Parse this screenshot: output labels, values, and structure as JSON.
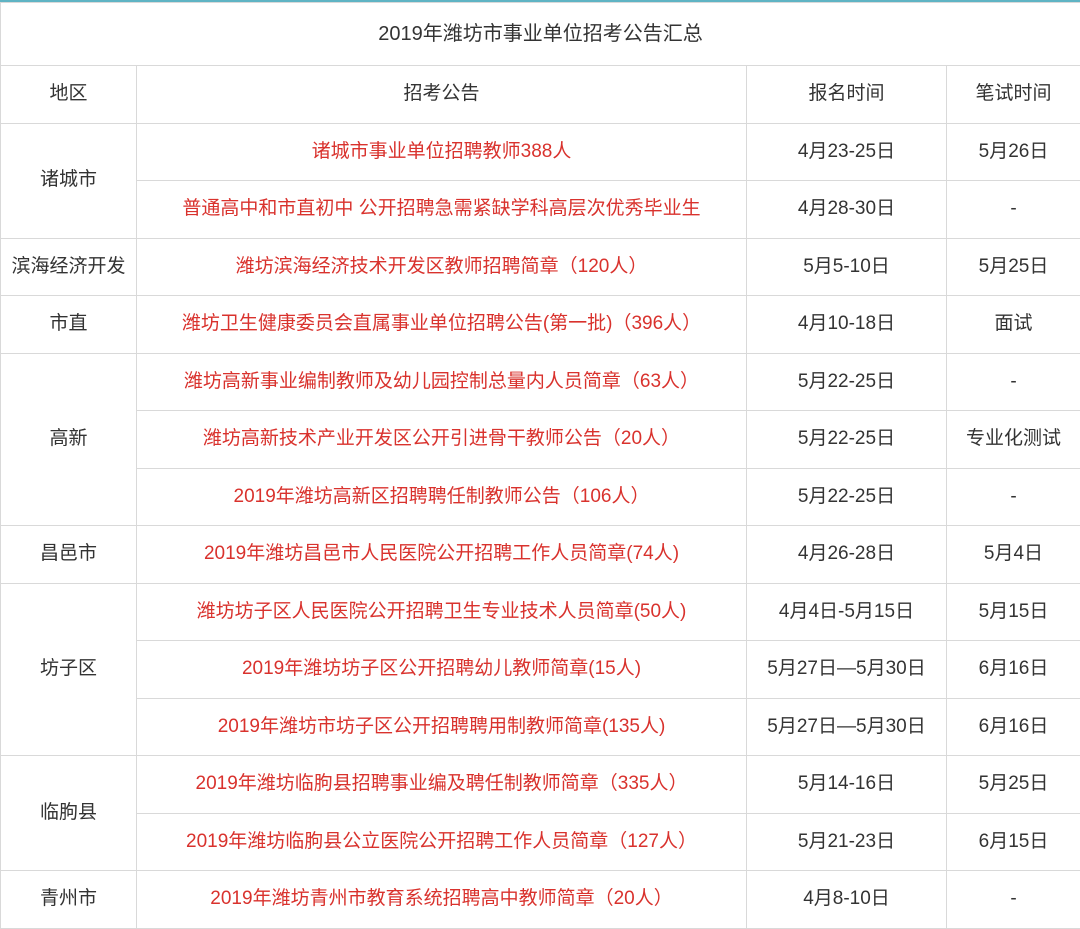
{
  "title": "2019年潍坊市事业单位招考公告汇总",
  "headers": {
    "region": "地区",
    "notice": "招考公告",
    "reg_time": "报名时间",
    "exam_time": "笔试时间"
  },
  "colors": {
    "link": "#d9322d",
    "border": "#d9d9d9",
    "top_border": "#5fb4c4",
    "text": "#333333",
    "background": "#ffffff"
  },
  "groups": [
    {
      "region": "诸城市",
      "rows": [
        {
          "notice": "诸城市事业单位招聘教师388人",
          "reg": "4月23-25日",
          "exam": "5月26日"
        },
        {
          "notice": "普通高中和市直初中 公开招聘急需紧缺学科高层次优秀毕业生",
          "reg": "4月28-30日",
          "exam": "-"
        }
      ]
    },
    {
      "region": "滨海经济开发",
      "rows": [
        {
          "notice": "潍坊滨海经济技术开发区教师招聘简章（120人）",
          "reg": "5月5-10日",
          "exam": "5月25日"
        }
      ]
    },
    {
      "region": "市直",
      "rows": [
        {
          "notice": "潍坊卫生健康委员会直属事业单位招聘公告(第一批)（396人）",
          "reg": "4月10-18日",
          "exam": "面试"
        }
      ]
    },
    {
      "region": "高新",
      "rows": [
        {
          "notice": "潍坊高新事业编制教师及幼儿园控制总量内人员简章（63人）",
          "reg": "5月22-25日",
          "exam": "-"
        },
        {
          "notice": "潍坊高新技术产业开发区公开引进骨干教师公告（20人）",
          "reg": "5月22-25日",
          "exam": "专业化测试"
        },
        {
          "notice": "2019年潍坊高新区招聘聘任制教师公告（106人）",
          "reg": "5月22-25日",
          "exam": "-"
        }
      ]
    },
    {
      "region": "昌邑市",
      "rows": [
        {
          "notice": "2019年潍坊昌邑市人民医院公开招聘工作人员简章(74人)",
          "reg": "4月26-28日",
          "exam": "5月4日"
        }
      ]
    },
    {
      "region": "坊子区",
      "rows": [
        {
          "notice": "潍坊坊子区人民医院公开招聘卫生专业技术人员简章(50人)",
          "reg": "4月4日-5月15日",
          "exam": "5月15日"
        },
        {
          "notice": "2019年潍坊坊子区公开招聘幼儿教师简章(15人)",
          "reg": "5月27日—5月30日",
          "exam": "6月16日"
        },
        {
          "notice": "2019年潍坊市坊子区公开招聘聘用制教师简章(135人)",
          "reg": "5月27日—5月30日",
          "exam": "6月16日"
        }
      ]
    },
    {
      "region": "临朐县",
      "rows": [
        {
          "notice": "2019年潍坊临朐县招聘事业编及聘任制教师简章（335人）",
          "reg": "5月14-16日",
          "exam": "5月25日"
        },
        {
          "notice": "2019年潍坊临朐县公立医院公开招聘工作人员简章（127人）",
          "reg": "5月21-23日",
          "exam": "6月15日"
        }
      ]
    },
    {
      "region": "青州市",
      "rows": [
        {
          "notice": "2019年潍坊青州市教育系统招聘高中教师简章（20人）",
          "reg": "4月8-10日",
          "exam": "-"
        }
      ]
    }
  ]
}
